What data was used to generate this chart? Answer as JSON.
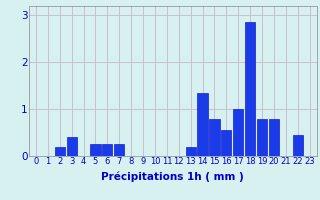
{
  "categories": [
    0,
    1,
    2,
    3,
    4,
    5,
    6,
    7,
    8,
    9,
    10,
    11,
    12,
    13,
    14,
    15,
    16,
    17,
    18,
    19,
    20,
    21,
    22,
    23
  ],
  "values": [
    0,
    0,
    0.2,
    0.4,
    0,
    0.25,
    0.25,
    0.25,
    0,
    0,
    0,
    0,
    0,
    0.2,
    1.35,
    0.8,
    0.55,
    1.0,
    2.85,
    0.8,
    0.8,
    0,
    0.45,
    0
  ],
  "bar_color": "#1a3be8",
  "bar_edge_color": "#0000cc",
  "background_color": "#d7f0f0",
  "grid_color": "#c8b8c8",
  "xlabel": "Précipitations 1h ( mm )",
  "xlabel_color": "#0000cc",
  "tick_color": "#0000cc",
  "spine_color": "#888888",
  "ylim": [
    0,
    3.2
  ],
  "yticks": [
    0,
    1,
    2,
    3
  ],
  "xlabel_fontsize": 7.5,
  "tick_fontsize": 6.0,
  "ytick_fontsize": 7.5
}
